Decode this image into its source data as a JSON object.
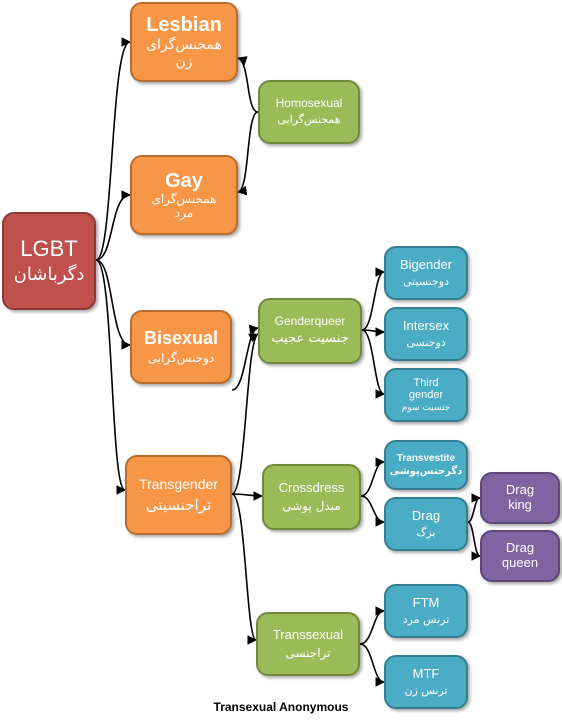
{
  "diagram": {
    "root": {
      "en": "LGBT",
      "fa": "دگرباشان"
    },
    "lesbian": {
      "en": "Lesbian",
      "fa1": "همجنس‌گرای",
      "fa2": "زن"
    },
    "gay": {
      "en": "Gay",
      "fa1": "همجنس‌گرای",
      "fa2": "مرد"
    },
    "homosexual": {
      "en": "Homosexual",
      "fa": "همجنس‌گرایی"
    },
    "bisexual": {
      "en": "Bisexual",
      "fa": "دوجنس‌گرایی"
    },
    "transgender": {
      "en": "Transgender",
      "fa": "تراجنسیتی"
    },
    "genderqueer": {
      "en": "Genderqueer",
      "fa": "جنسیت عجیب"
    },
    "bigender": {
      "en": "Bigender",
      "fa": "دوجنسیتی"
    },
    "intersex": {
      "en": "Intersex",
      "fa": "دوجنسی"
    },
    "third_gender": {
      "en1": "Third",
      "en2": "gender",
      "fa": "جنسیت سوم"
    },
    "crossdress": {
      "en": "Crossdress",
      "fa": "مبدل پوشی"
    },
    "transvestite": {
      "en": "Transvestite",
      "fa": "دگرجنس‌پوشی"
    },
    "drag": {
      "en": "Drag",
      "fa": "بزگ"
    },
    "drag_king": {
      "en1": "Drag",
      "en2": "king"
    },
    "drag_queen": {
      "en1": "Drag",
      "en2": "queen"
    },
    "transsexual": {
      "en": "Transsexual",
      "fa": "تراجنسی"
    },
    "ftm": {
      "en": "FTM",
      "fa": "ترنس مرد"
    },
    "mtf": {
      "en": "MTF",
      "fa": "ترنس زن"
    }
  },
  "footer": "Transexual Anonymous",
  "colors": {
    "red": "#c0504d",
    "orange": "#f79646",
    "green": "#9bbb59",
    "blue": "#4bacc6",
    "purple": "#8064a2"
  }
}
